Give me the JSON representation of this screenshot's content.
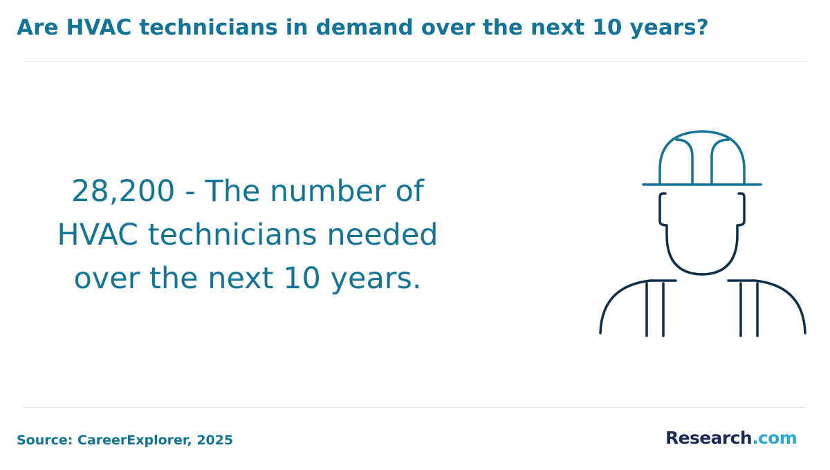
{
  "header": {
    "title": "Are HVAC technicians in demand over the next 10 years?"
  },
  "main": {
    "statement": "28,200 - The number of HVAC technicians needed over the next 10 years.",
    "illustration_icon": "construction-worker-hard-hat-icon"
  },
  "footer": {
    "source": "Source: CareerExplorer, 2025",
    "logo_name": "Research",
    "logo_tld": ".com"
  },
  "colors": {
    "accent": "#137499",
    "icon_dark": "#0e2f4a",
    "logo_dark": "#1b2a57",
    "logo_light": "#2aa8dc",
    "divider": "#e3e3e3"
  }
}
